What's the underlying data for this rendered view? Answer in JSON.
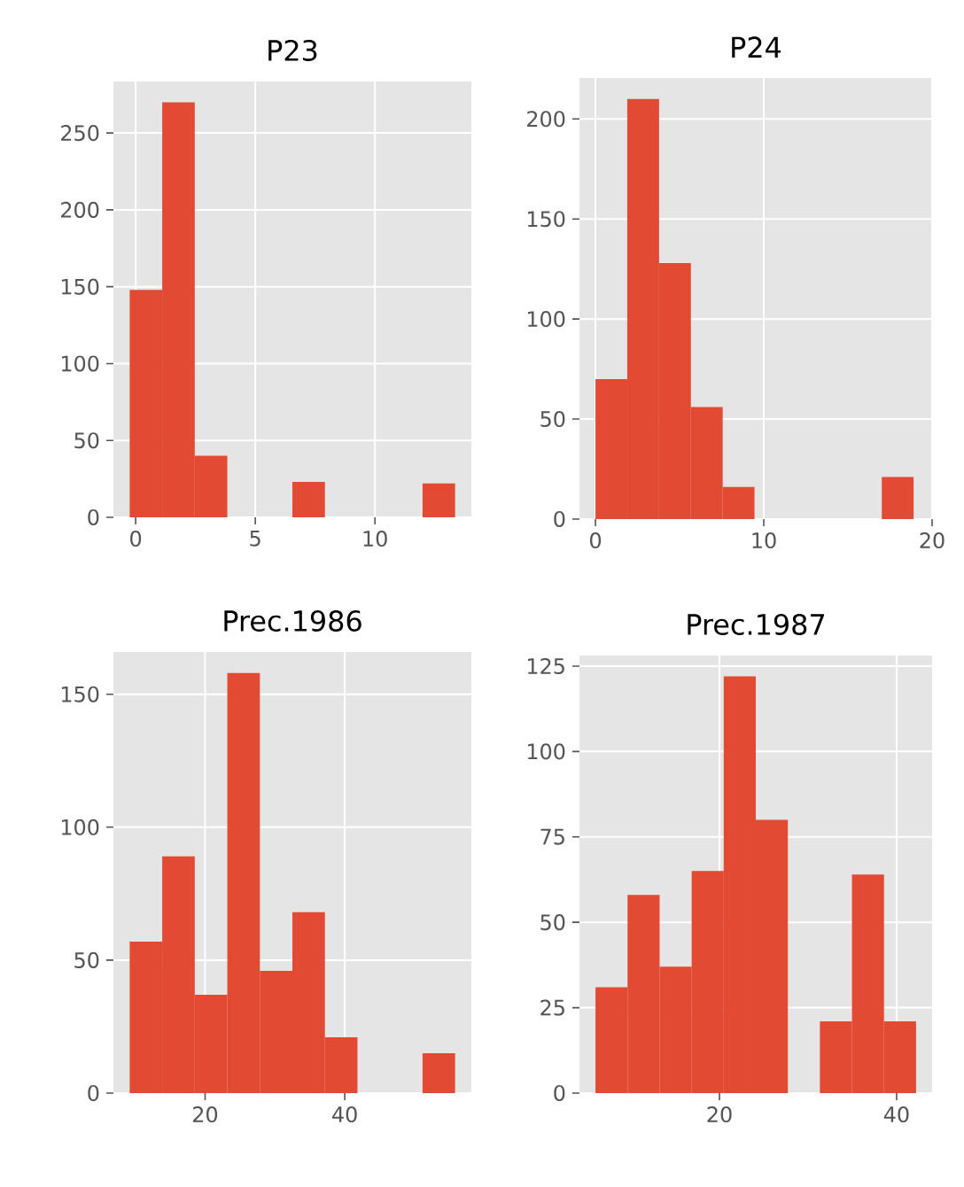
{
  "chart_data": [
    {
      "type": "histogram",
      "title": "P23",
      "bins": [
        -0.25,
        1.11,
        2.47,
        3.83,
        5.19,
        6.55,
        7.91,
        9.27,
        10.63,
        11.99,
        13.35
      ],
      "values": [
        148,
        270,
        40,
        0,
        0,
        23,
        0,
        0,
        0,
        22
      ],
      "color": "#e24a33",
      "xlim": [
        -0.93,
        14.03
      ],
      "ylim": [
        0,
        283.5
      ],
      "xticks": [
        0,
        5,
        10
      ],
      "yticks": [
        0,
        50,
        100,
        150,
        200,
        250
      ],
      "grid": true
    },
    {
      "type": "histogram",
      "title": "P24",
      "bins": [
        0,
        1.89,
        3.78,
        5.67,
        7.56,
        9.45,
        11.34,
        13.23,
        15.12,
        17.01,
        18.9
      ],
      "values": [
        70,
        210,
        128,
        56,
        16,
        0,
        0,
        0,
        0,
        21
      ],
      "color": "#e24a33",
      "xlim": [
        -0.95,
        20.0
      ],
      "ylim": [
        0,
        220.5
      ],
      "xticks": [
        0,
        10,
        20
      ],
      "yticks": [
        0,
        50,
        100,
        150,
        200
      ],
      "grid": true
    },
    {
      "type": "histogram",
      "title": "Prec.1986",
      "bins": [
        9.2,
        13.86,
        18.52,
        23.18,
        27.84,
        32.5,
        37.16,
        41.82,
        46.48,
        51.14,
        55.8
      ],
      "values": [
        57,
        89,
        37,
        158,
        46,
        68,
        21,
        0,
        0,
        15
      ],
      "color": "#e24a33",
      "xlim": [
        6.87,
        58.13
      ],
      "ylim": [
        0,
        165.9
      ],
      "xticks": [
        20,
        40
      ],
      "yticks": [
        0,
        50,
        100,
        150
      ],
      "grid": true
    },
    {
      "type": "histogram",
      "title": "Prec.1987",
      "bins": [
        6.0,
        9.62,
        13.24,
        16.86,
        20.48,
        24.1,
        27.72,
        31.34,
        34.96,
        38.58,
        42.2
      ],
      "values": [
        31,
        58,
        37,
        65,
        122,
        80,
        0,
        21,
        64,
        21
      ],
      "color": "#e24a33",
      "xlim": [
        4.19,
        44.01
      ],
      "ylim": [
        0,
        128.1
      ],
      "xticks": [
        20,
        40
      ],
      "yticks": [
        0,
        25,
        50,
        75,
        100,
        125
      ],
      "grid": true
    }
  ]
}
